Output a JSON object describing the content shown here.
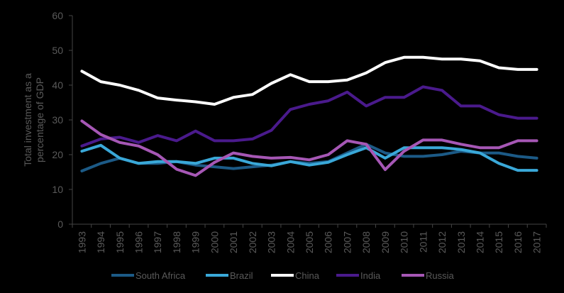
{
  "chart_data": {
    "type": "line",
    "title": "",
    "xlabel": "",
    "ylabel": "Total investment as a percentage of GDP",
    "ylabel_lines": [
      "Total investment as a",
      "percentage of GDP"
    ],
    "ylim": [
      0,
      60
    ],
    "yticks": [
      0,
      10,
      20,
      30,
      40,
      50,
      60
    ],
    "grid": false,
    "legend_position": "bottom",
    "x": [
      "1993",
      "1994",
      "1995",
      "1996",
      "1997",
      "1998",
      "1999",
      "2000",
      "2001",
      "2002",
      "2003",
      "2004",
      "2005",
      "2006",
      "2007",
      "2008",
      "2009",
      "2010",
      "2011",
      "2012",
      "2013",
      "2014",
      "2015",
      "2016",
      "2017"
    ],
    "series": [
      {
        "name": "South Africa",
        "color": "#1c5a86",
        "values": [
          15.3,
          17.5,
          19.0,
          17.5,
          17.5,
          18.0,
          17.0,
          16.5,
          16.0,
          16.5,
          17.0,
          18.0,
          17.5,
          18.0,
          20.5,
          23.0,
          20.5,
          19.5,
          19.5,
          20.0,
          21.0,
          20.5,
          20.5,
          19.5,
          19.0
        ]
      },
      {
        "name": "Brazil",
        "color": "#3aa8d8",
        "values": [
          21.0,
          22.7,
          19.0,
          17.5,
          18.0,
          18.0,
          17.5,
          19.0,
          19.0,
          17.5,
          16.8,
          18.0,
          17.0,
          17.8,
          20.0,
          22.0,
          19.0,
          22.0,
          22.0,
          22.0,
          21.5,
          20.5,
          17.5,
          15.5,
          15.5
        ]
      },
      {
        "name": "China",
        "color": "#ffffff",
        "values": [
          44.0,
          41.0,
          40.0,
          38.5,
          36.3,
          35.7,
          35.2,
          34.5,
          36.5,
          37.3,
          40.5,
          43.0,
          41.0,
          41.0,
          41.5,
          43.5,
          46.5,
          48.0,
          48.0,
          47.5,
          47.5,
          47.0,
          45.0,
          44.5,
          44.5
        ]
      },
      {
        "name": "India",
        "color": "#4a1a8c",
        "values": [
          22.5,
          24.5,
          25.0,
          23.5,
          25.5,
          24.0,
          26.8,
          24.0,
          24.0,
          24.5,
          27.0,
          33.0,
          34.5,
          35.5,
          38.0,
          34.0,
          36.5,
          36.5,
          39.5,
          38.5,
          34.0,
          34.0,
          31.5,
          30.5,
          30.5
        ]
      },
      {
        "name": "Russia",
        "color": "#a657b5",
        "values": [
          29.7,
          25.8,
          23.5,
          22.5,
          20.0,
          15.8,
          14.0,
          17.8,
          20.5,
          19.5,
          19.0,
          19.2,
          18.5,
          20.0,
          24.0,
          23.0,
          15.7,
          21.0,
          24.2,
          24.2,
          23.0,
          22.0,
          22.0,
          24.0,
          24.0
        ]
      }
    ]
  }
}
